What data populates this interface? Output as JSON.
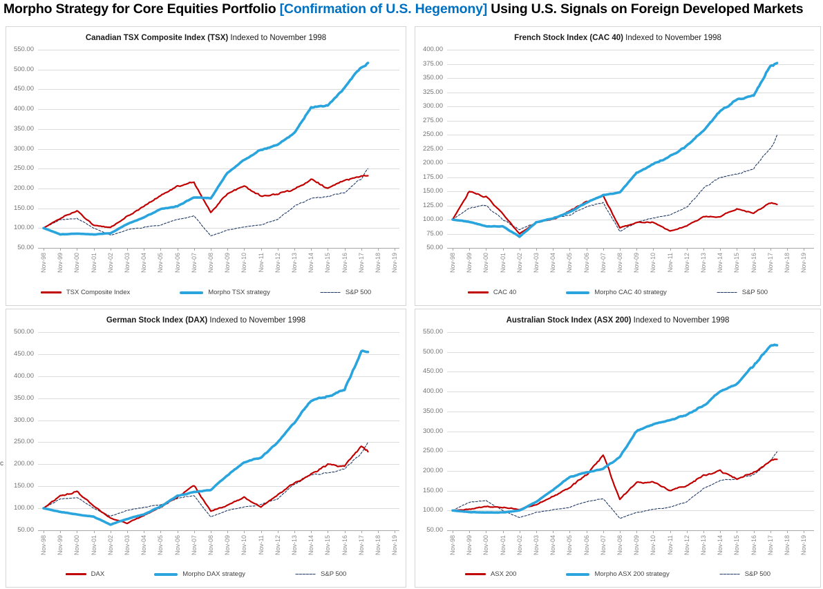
{
  "page": {
    "title_part1": "Morpho Strategy for Core Equities Portfolio ",
    "title_accent": "[Confirmation of U.S. Hegemony]",
    "title_part3": " Using U.S. Signals on Foreign Developed Markets",
    "accent_color": "#0070C0",
    "clipped_fragment": "c"
  },
  "colors": {
    "index_line": "#C00000",
    "morpho_line": "#29A4DC",
    "sp500_line": "#1F3864",
    "gridline": "#DBDBDB",
    "axis": "#A6A6A6",
    "axis_text": "#8C8C8C"
  },
  "chart_data": [
    {
      "type": "line",
      "id": "tsx",
      "title_bold": "Canadian TSX Composite Index (TSX)",
      "title_rest": " Indexed to November 1998",
      "ylim": [
        50,
        550
      ],
      "ystep": 50,
      "grid": true,
      "legend_position": "bottom",
      "categories": [
        "Nov-98",
        "Nov-99",
        "Nov-00",
        "Nov-01",
        "Nov-02",
        "Nov-03",
        "Nov-04",
        "Nov-05",
        "Nov-06",
        "Nov-07",
        "Nov-08",
        "Nov-09",
        "Nov-10",
        "Nov-11",
        "Nov-12",
        "Nov-13",
        "Nov-14",
        "Nov-15",
        "Nov-16",
        "Nov-17",
        "Nov-18",
        "Nov-19"
      ],
      "x_index": [
        0,
        1,
        2,
        3,
        4,
        5,
        6,
        7,
        8,
        9,
        10,
        11,
        12,
        13,
        14,
        15,
        16,
        17,
        18,
        19,
        19.4
      ],
      "series": [
        {
          "name": "TSX Composite Index",
          "color": "#C00000",
          "width": 2.2,
          "dash": null,
          "vol": 0.024,
          "values": [
            100,
            125,
            144,
            107,
            101,
            130,
            155,
            181,
            206,
            216,
            140,
            186,
            206,
            181,
            186,
            198,
            222,
            201,
            220,
            232,
            232
          ]
        },
        {
          "name": "Morpho TSX strategy",
          "color": "#29A4DC",
          "width": 3.6,
          "dash": null,
          "vol": 0.011,
          "values": [
            100,
            84,
            86,
            84,
            87,
            110,
            127,
            148,
            155,
            178,
            175,
            240,
            272,
            298,
            310,
            340,
            405,
            408,
            455,
            507,
            515
          ]
        },
        {
          "name": "S&P 500",
          "color": "#1F3864",
          "width": 1.1,
          "dash": "3,2.2",
          "vol": 0.02,
          "values": [
            100,
            121,
            125,
            100,
            82,
            95,
            102,
            108,
            122,
            130,
            80,
            95,
            103,
            108,
            122,
            155,
            175,
            180,
            190,
            225,
            248
          ]
        }
      ]
    },
    {
      "type": "line",
      "id": "cac40",
      "title_bold": "French Stock Index (CAC 40)",
      "title_rest": " Indexed to November 1998",
      "ylim": [
        50,
        400
      ],
      "ystep": 25,
      "grid": true,
      "legend_position": "bottom",
      "categories": [
        "Nov-98",
        "Nov-99",
        "Nov-00",
        "Nov-01",
        "Nov-02",
        "Nov-03",
        "Nov-04",
        "Nov-05",
        "Nov-06",
        "Nov-07",
        "Nov-08",
        "Nov-09",
        "Nov-10",
        "Nov-11",
        "Nov-12",
        "Nov-13",
        "Nov-14",
        "Nov-15",
        "Nov-16",
        "Nov-17",
        "Nov-18",
        "Nov-19"
      ],
      "x_index": [
        0,
        1,
        2,
        3,
        4,
        5,
        6,
        7,
        8,
        9,
        10,
        11,
        12,
        13,
        14,
        15,
        16,
        17,
        18,
        19,
        19.4
      ],
      "series": [
        {
          "name": "CAC 40",
          "color": "#C00000",
          "width": 2.2,
          "dash": null,
          "vol": 0.024,
          "values": [
            100,
            150,
            140,
            110,
            75,
            95,
            100,
            115,
            132,
            142,
            85,
            95,
            95,
            80,
            88,
            105,
            105,
            120,
            112,
            130,
            126
          ]
        },
        {
          "name": "Morpho CAC 40 strategy",
          "color": "#29A4DC",
          "width": 3.6,
          "dash": null,
          "vol": 0.011,
          "values": [
            100,
            96,
            88,
            88,
            70,
            95,
            102,
            113,
            130,
            143,
            148,
            182,
            198,
            212,
            230,
            258,
            292,
            312,
            318,
            372,
            376
          ]
        },
        {
          "name": "S&P 500",
          "color": "#1F3864",
          "width": 1.1,
          "dash": "3,2.2",
          "vol": 0.02,
          "values": [
            100,
            121,
            125,
            100,
            82,
            95,
            102,
            108,
            122,
            130,
            80,
            95,
            103,
            108,
            122,
            155,
            175,
            180,
            190,
            225,
            248
          ]
        }
      ]
    },
    {
      "type": "line",
      "id": "dax",
      "title_bold": "German Stock Index (DAX)",
      "title_rest": " Indexed to November 1998",
      "ylim": [
        50,
        500
      ],
      "ystep": 50,
      "grid": true,
      "legend_position": "bottom",
      "categories": [
        "Nov-98",
        "Nov-99",
        "Nov-00",
        "Nov-01",
        "Nov-02",
        "Nov-03",
        "Nov-04",
        "Nov-05",
        "Nov-06",
        "Nov-07",
        "Nov-08",
        "Nov-09",
        "Nov-10",
        "Nov-11",
        "Nov-12",
        "Nov-13",
        "Nov-14",
        "Nov-15",
        "Nov-16",
        "Nov-17",
        "Nov-18",
        "Nov-19"
      ],
      "x_index": [
        0,
        1,
        2,
        3,
        4,
        5,
        6,
        7,
        8,
        9,
        10,
        11,
        12,
        13,
        14,
        15,
        16,
        17,
        18,
        19,
        19.4
      ],
      "series": [
        {
          "name": "DAX",
          "color": "#C00000",
          "width": 2.2,
          "dash": null,
          "vol": 0.026,
          "values": [
            100,
            128,
            138,
            105,
            78,
            66,
            84,
            102,
            125,
            152,
            94,
            107,
            125,
            103,
            130,
            158,
            177,
            200,
            194,
            240,
            228
          ]
        },
        {
          "name": "Morpho DAX strategy",
          "color": "#29A4DC",
          "width": 3.6,
          "dash": null,
          "vol": 0.011,
          "values": [
            100,
            92,
            86,
            81,
            63,
            76,
            86,
            104,
            128,
            137,
            142,
            175,
            205,
            215,
            250,
            295,
            345,
            355,
            370,
            455,
            455
          ]
        },
        {
          "name": "S&P 500",
          "color": "#1F3864",
          "width": 1.1,
          "dash": "3,2.2",
          "vol": 0.02,
          "values": [
            100,
            121,
            125,
            100,
            82,
            95,
            102,
            108,
            122,
            130,
            80,
            95,
            103,
            108,
            122,
            155,
            175,
            180,
            190,
            225,
            248
          ]
        }
      ]
    },
    {
      "type": "line",
      "id": "asx200",
      "title_bold": "Australian Stock Index (ASX 200)",
      "title_rest": " Indexed to November 1998",
      "ylim": [
        50,
        550
      ],
      "ystep": 50,
      "grid": true,
      "legend_position": "bottom",
      "categories": [
        "Nov-98",
        "Nov-99",
        "Nov-00",
        "Nov-01",
        "Nov-02",
        "Nov-03",
        "Nov-04",
        "Nov-05",
        "Nov-06",
        "Nov-07",
        "Nov-08",
        "Nov-09",
        "Nov-10",
        "Nov-11",
        "Nov-12",
        "Nov-13",
        "Nov-14",
        "Nov-15",
        "Nov-16",
        "Nov-17",
        "Nov-18",
        "Nov-19"
      ],
      "x_index": [
        0,
        1,
        2,
        3,
        4,
        5,
        6,
        7,
        8,
        9,
        10,
        11,
        12,
        13,
        14,
        15,
        16,
        17,
        18,
        19,
        19.4
      ],
      "series": [
        {
          "name": "ASX 200",
          "color": "#C00000",
          "width": 2.2,
          "dash": null,
          "vol": 0.024,
          "values": [
            100,
            103,
            110,
            108,
            103,
            115,
            135,
            158,
            190,
            240,
            128,
            170,
            172,
            150,
            163,
            188,
            200,
            180,
            195,
            225,
            230
          ]
        },
        {
          "name": "Morpho ASX 200 strategy",
          "color": "#29A4DC",
          "width": 3.6,
          "dash": null,
          "vol": 0.011,
          "values": [
            100,
            96,
            95,
            95,
            100,
            122,
            152,
            185,
            196,
            205,
            235,
            300,
            318,
            328,
            342,
            365,
            400,
            420,
            465,
            515,
            519
          ]
        },
        {
          "name": "S&P 500",
          "color": "#1F3864",
          "width": 1.1,
          "dash": "3,2.2",
          "vol": 0.02,
          "values": [
            100,
            121,
            125,
            100,
            82,
            95,
            102,
            108,
            122,
            130,
            80,
            95,
            103,
            108,
            122,
            155,
            175,
            180,
            190,
            225,
            248
          ]
        }
      ]
    }
  ]
}
